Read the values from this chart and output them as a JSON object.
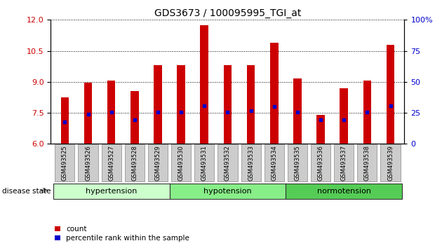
{
  "title": "GDS3673 / 100095995_TGI_at",
  "samples": [
    "GSM493525",
    "GSM493526",
    "GSM493527",
    "GSM493528",
    "GSM493529",
    "GSM493530",
    "GSM493531",
    "GSM493532",
    "GSM493533",
    "GSM493534",
    "GSM493535",
    "GSM493536",
    "GSM493537",
    "GSM493538",
    "GSM493539"
  ],
  "count_values": [
    8.25,
    8.95,
    9.05,
    8.55,
    9.8,
    9.8,
    11.75,
    9.8,
    9.8,
    10.9,
    9.15,
    7.4,
    8.7,
    9.05,
    10.8
  ],
  "percentile_values": [
    7.05,
    7.45,
    7.52,
    7.18,
    7.52,
    7.55,
    7.85,
    7.55,
    7.6,
    7.82,
    7.52,
    7.15,
    7.18,
    7.55,
    7.85
  ],
  "ylim": [
    6,
    12
  ],
  "yticks_left": [
    6,
    7.5,
    9,
    10.5,
    12
  ],
  "yticks_right": [
    0,
    25,
    50,
    75,
    100
  ],
  "bar_color": "#cc0000",
  "dot_color": "#0000cc",
  "bar_width": 0.35,
  "groups": [
    {
      "label": "hypertension",
      "start": 0,
      "end": 4,
      "color": "#ccffcc"
    },
    {
      "label": "hypotension",
      "start": 5,
      "end": 9,
      "color": "#88ee88"
    },
    {
      "label": "normotension",
      "start": 10,
      "end": 14,
      "color": "#55cc55"
    }
  ],
  "disease_state_label": "disease state",
  "legend_count": "count",
  "legend_percentile": "percentile rank within the sample",
  "grid_color": "black",
  "tick_label_color_left": "#cc0000",
  "tick_label_color_right": "#0000cc",
  "bg_color": "#ffffff",
  "xticklabel_bg": "#cccccc",
  "group_colors": [
    "#ccffcc",
    "#88ee88",
    "#55cc55"
  ]
}
